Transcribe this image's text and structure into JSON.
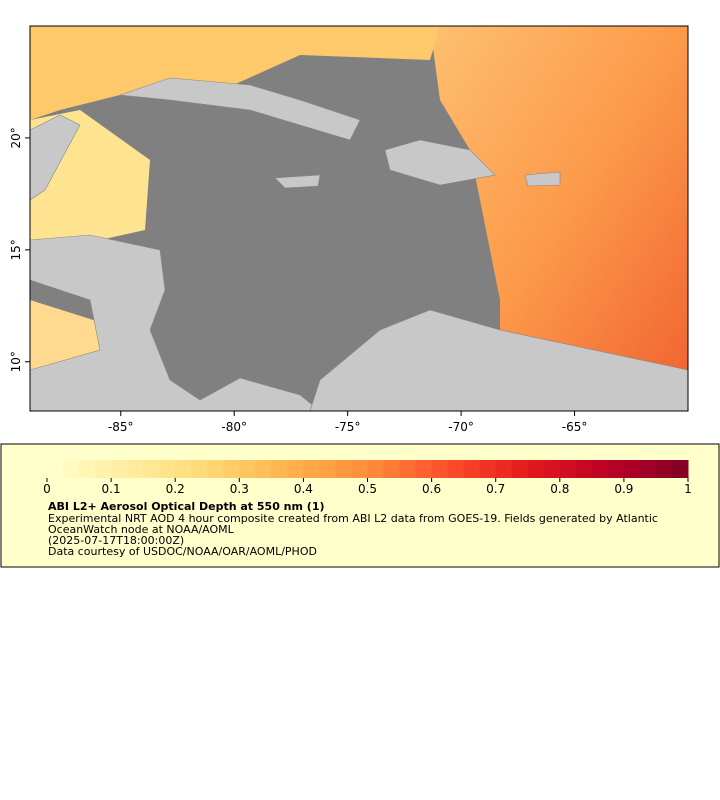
{
  "map": {
    "xlim": [
      -89,
      -60
    ],
    "ylim": [
      7.8,
      25
    ],
    "lon_ticks": [
      {
        "value": -85,
        "label": "-85°"
      },
      {
        "value": -80,
        "label": "-80°"
      },
      {
        "value": -75,
        "label": "-75°"
      },
      {
        "value": -70,
        "label": "-70°"
      },
      {
        "value": -65,
        "label": "-65°"
      }
    ],
    "lat_ticks": [
      {
        "value": 10,
        "label": "10°"
      },
      {
        "value": 15,
        "label": "15°"
      },
      {
        "value": 20,
        "label": "20°"
      }
    ]
  },
  "colorbar": {
    "lim": [
      0,
      1
    ],
    "ticks": [
      0,
      0.1,
      0.2,
      0.3,
      0.4,
      0.5,
      0.6,
      0.7,
      0.8,
      0.9,
      1
    ],
    "colors": [
      "#ffffcc",
      "#ffeda0",
      "#fed976",
      "#feb24c",
      "#fd8d3c",
      "#fc4e2a",
      "#e31a1c",
      "#bd0026",
      "#800026"
    ],
    "title": "ABI L2+ Aerosol Optical Depth at 550 nm (1)",
    "lines": [
      "Experimental NRT AOD 4 hour composite created from ABI L2 data from GOES-19. Fields generated by Atlantic",
      "OceanWatch node at NOAA/AOML",
      "(2025-07-17T18:00:00Z)",
      "Data courtesy of USDOC/NOAA/OAR/AOML/PHOD"
    ]
  }
}
